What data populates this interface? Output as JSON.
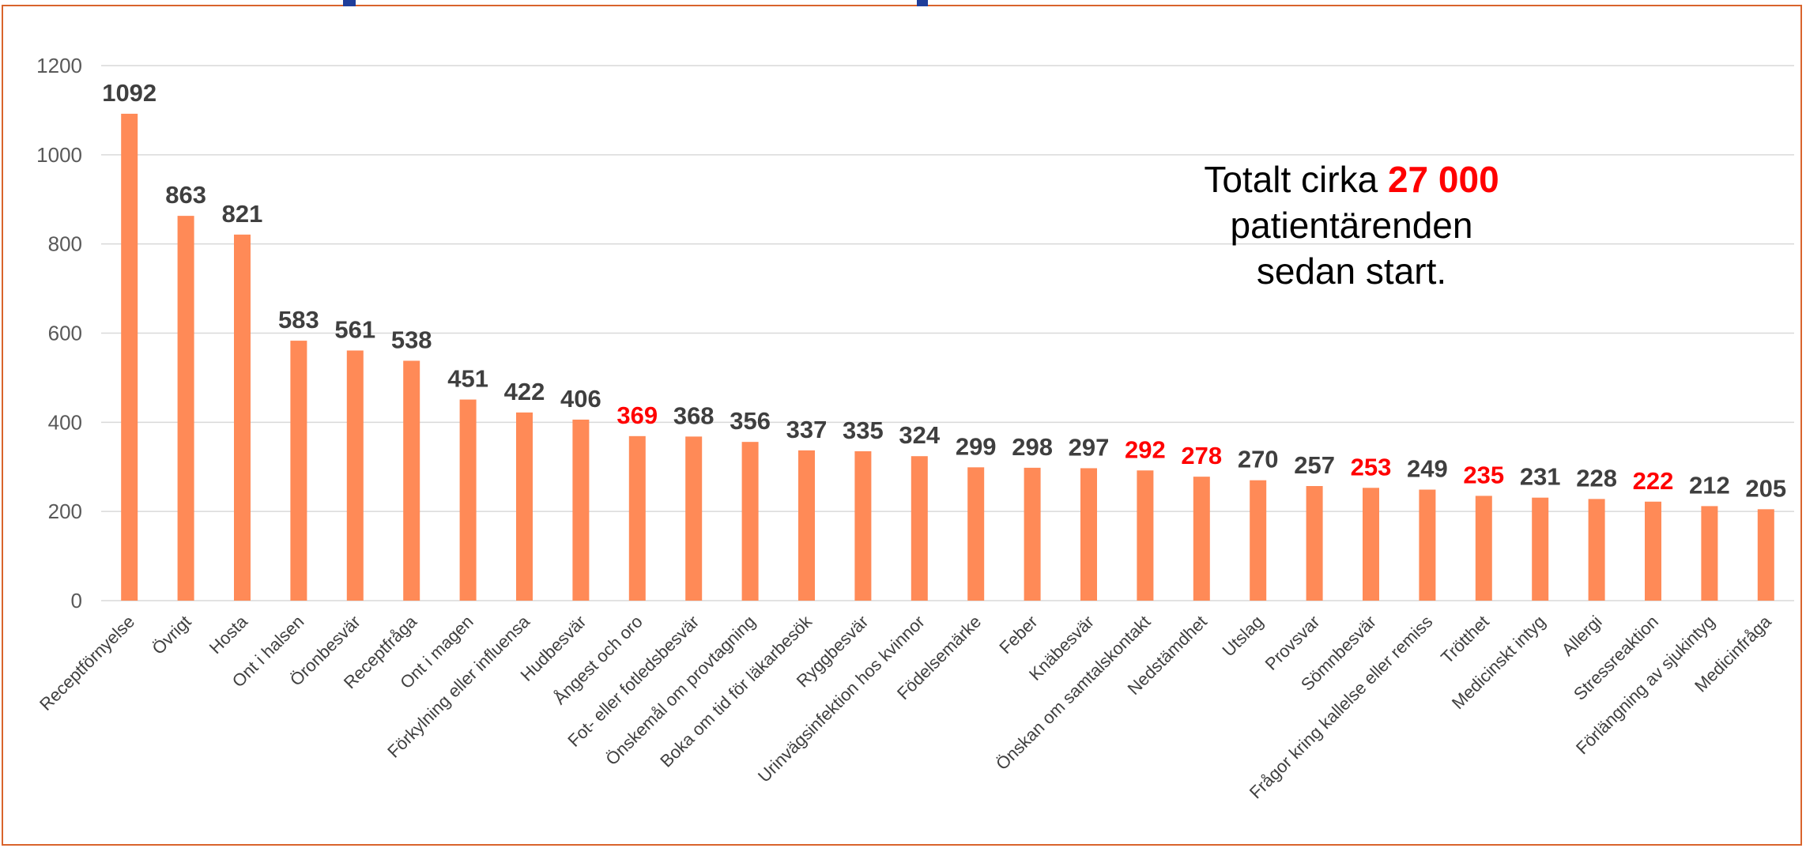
{
  "colors": {
    "bar": "#ff8a57",
    "label": "#3f3f3f",
    "highlight": "#ff0000",
    "grid": "#d9d9d9",
    "frame": "#d9642c",
    "title_bar": "#1f3d9a"
  },
  "note": {
    "prefix": "Totalt cirka ",
    "highlight": "27 000",
    "line2": "patientärenden",
    "line3": "sedan start."
  },
  "chart_data": {
    "type": "bar",
    "title": "",
    "xlabel": "",
    "ylabel": "",
    "ylim": [
      0,
      1200
    ],
    "yticks": [
      0,
      200,
      400,
      600,
      800,
      1000,
      1200
    ],
    "grid": true,
    "categories": [
      "Receptförnyelse",
      "Övrigt",
      "Hosta",
      "Ont i halsen",
      "Öronbesvär",
      "Receptfråga",
      "Ont i magen",
      "Förkylning eller influensa",
      "Hudbesvär",
      "Ångest och oro",
      "Fot- eller fotledsbesvär",
      "Önskemål om provtagning",
      "Boka om tid för läkarbesök",
      "Ryggbesvär",
      "Urinvägsinfektion hos kvinnor",
      "Födelsemärke",
      "Feber",
      "Knäbesvär",
      "Önskan om samtalskontakt",
      "Nedstämdhet",
      "Utslag",
      "Provsvar",
      "Sömnbesvär",
      "Frågor kring kallelse eller remiss",
      "Trötthet",
      "Medicinskt intyg",
      "Allergi",
      "Stressreaktion",
      "Förlängning av sjukintyg",
      "Medicinfråga"
    ],
    "values": [
      1092,
      863,
      821,
      583,
      561,
      538,
      451,
      422,
      406,
      369,
      368,
      356,
      337,
      335,
      324,
      299,
      298,
      297,
      292,
      278,
      270,
      257,
      253,
      249,
      235,
      231,
      228,
      222,
      212,
      205
    ],
    "highlighted_labels": [
      false,
      false,
      false,
      false,
      false,
      false,
      false,
      false,
      false,
      true,
      false,
      false,
      false,
      false,
      false,
      false,
      false,
      false,
      true,
      true,
      false,
      false,
      true,
      false,
      true,
      false,
      false,
      true,
      false,
      false
    ]
  }
}
